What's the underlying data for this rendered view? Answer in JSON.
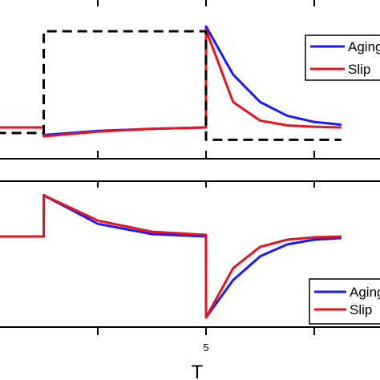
{
  "chart_data": [
    {
      "type": "line",
      "panel": "top",
      "grid": false,
      "legend_position": "right",
      "x": [
        0,
        1,
        2,
        2.001,
        3,
        4,
        4.999,
        5,
        5.5,
        6,
        6.5,
        7,
        7.5
      ],
      "series": [
        {
          "name": "Aging",
          "color": "#1a1aff",
          "style": "solid",
          "values": [
            0.58,
            0.58,
            0.58,
            0.47,
            0.53,
            0.56,
            0.58,
            2.05,
            1.35,
            0.95,
            0.75,
            0.66,
            0.62
          ]
        },
        {
          "name": "Slip",
          "color": "#e8141c",
          "style": "solid",
          "values": [
            0.58,
            0.58,
            0.58,
            0.45,
            0.52,
            0.56,
            0.58,
            2.0,
            0.95,
            0.68,
            0.61,
            0.59,
            0.58
          ]
        },
        {
          "name": "",
          "color": "#000000",
          "style": "dashed",
          "values": [
            0.5,
            0.5,
            0.5,
            1.98,
            1.98,
            1.98,
            1.98,
            0.4,
            0.4,
            0.4,
            0.4,
            0.4,
            0.4
          ]
        }
      ],
      "legend": [
        "Aging",
        "Slip"
      ]
    },
    {
      "type": "line",
      "panel": "bottom",
      "grid": false,
      "legend_position": "bottom-right",
      "x": [
        0,
        1,
        2,
        2.001,
        3,
        4,
        4.999,
        5,
        5.5,
        6,
        6.5,
        7,
        7.5
      ],
      "xlabel": "T",
      "xticks": [
        5
      ],
      "series": [
        {
          "name": "Aging",
          "color": "#1a1aff",
          "style": "solid",
          "values": [
            0.0,
            0.0,
            0.0,
            0.52,
            0.16,
            0.03,
            0.0,
            -1.02,
            -0.55,
            -0.25,
            -0.1,
            -0.04,
            -0.02
          ]
        },
        {
          "name": "Slip",
          "color": "#e8141c",
          "style": "solid",
          "values": [
            0.0,
            0.0,
            0.0,
            0.52,
            0.2,
            0.06,
            0.02,
            -1.02,
            -0.4,
            -0.13,
            -0.04,
            -0.01,
            0.0
          ]
        }
      ],
      "legend": [
        "Aging",
        "Slip"
      ]
    }
  ]
}
